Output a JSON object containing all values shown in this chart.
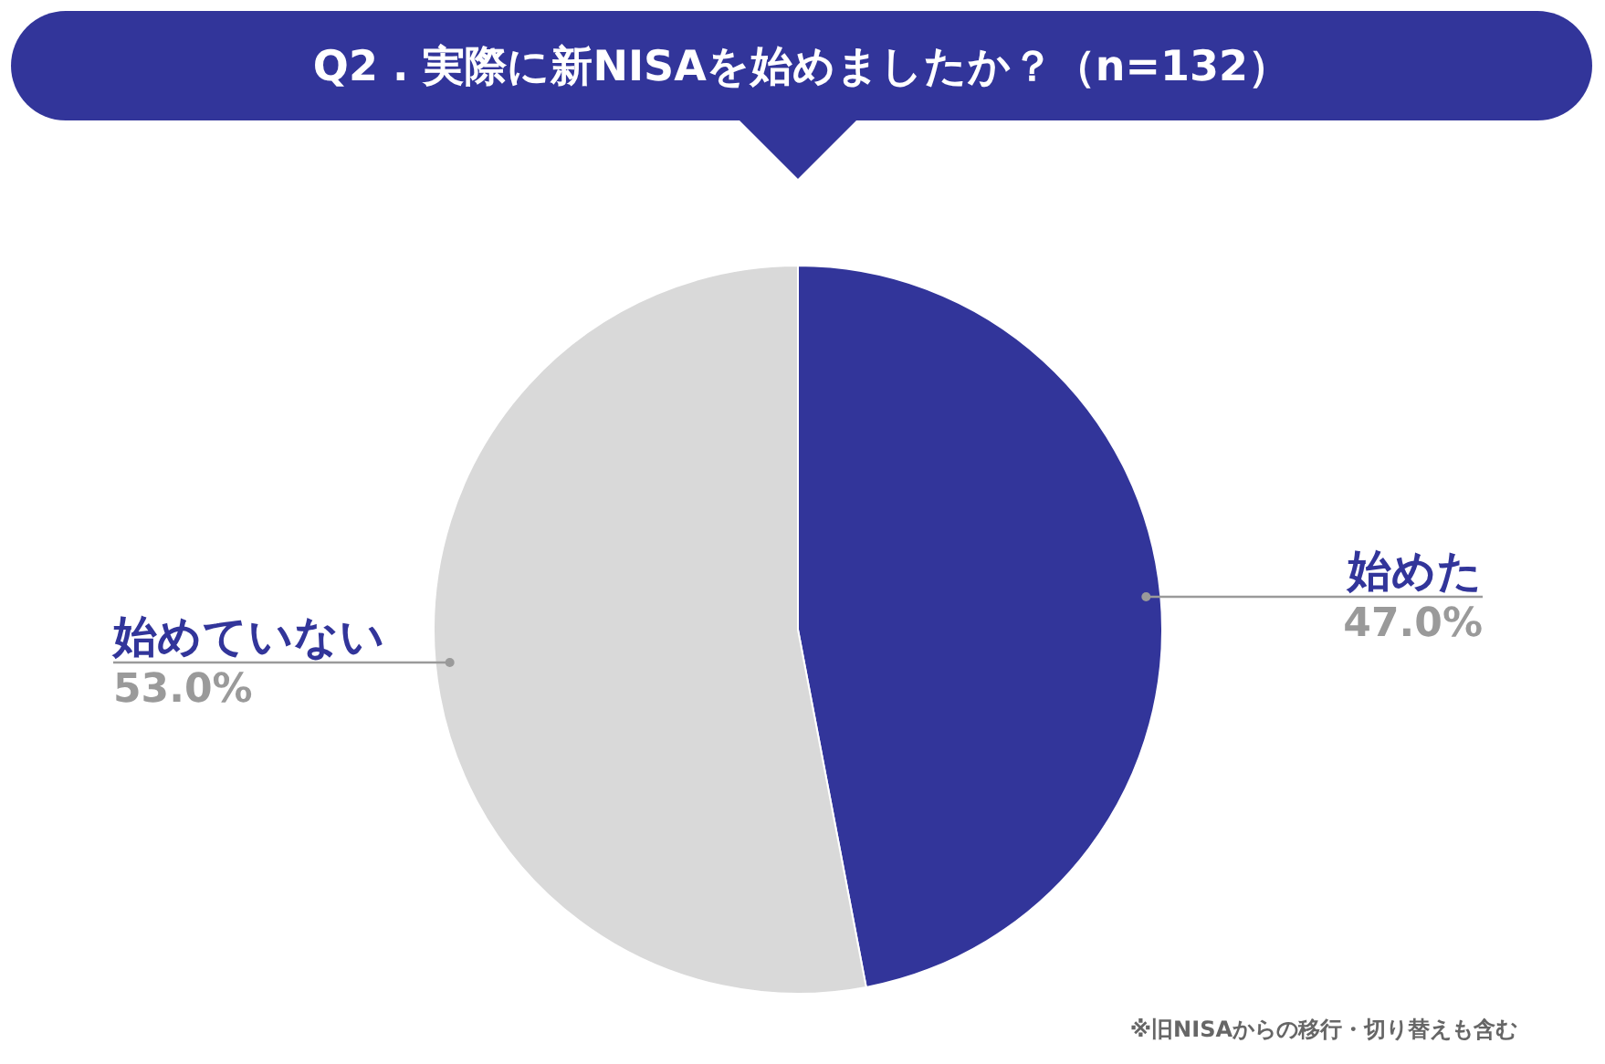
{
  "chart_data": {
    "type": "pie",
    "title": "Q2 . 実際に新NISAを始めましたか？（n=132）",
    "categories": [
      "始めた",
      "始めていない"
    ],
    "values": [
      47.0,
      53.0
    ],
    "value_labels": [
      "47.0%",
      "53.0%"
    ],
    "colors": [
      "#32359a",
      "#d9d9d9"
    ],
    "annotations": [
      "※旧NISAからの移行・切り替えも含む"
    ]
  }
}
